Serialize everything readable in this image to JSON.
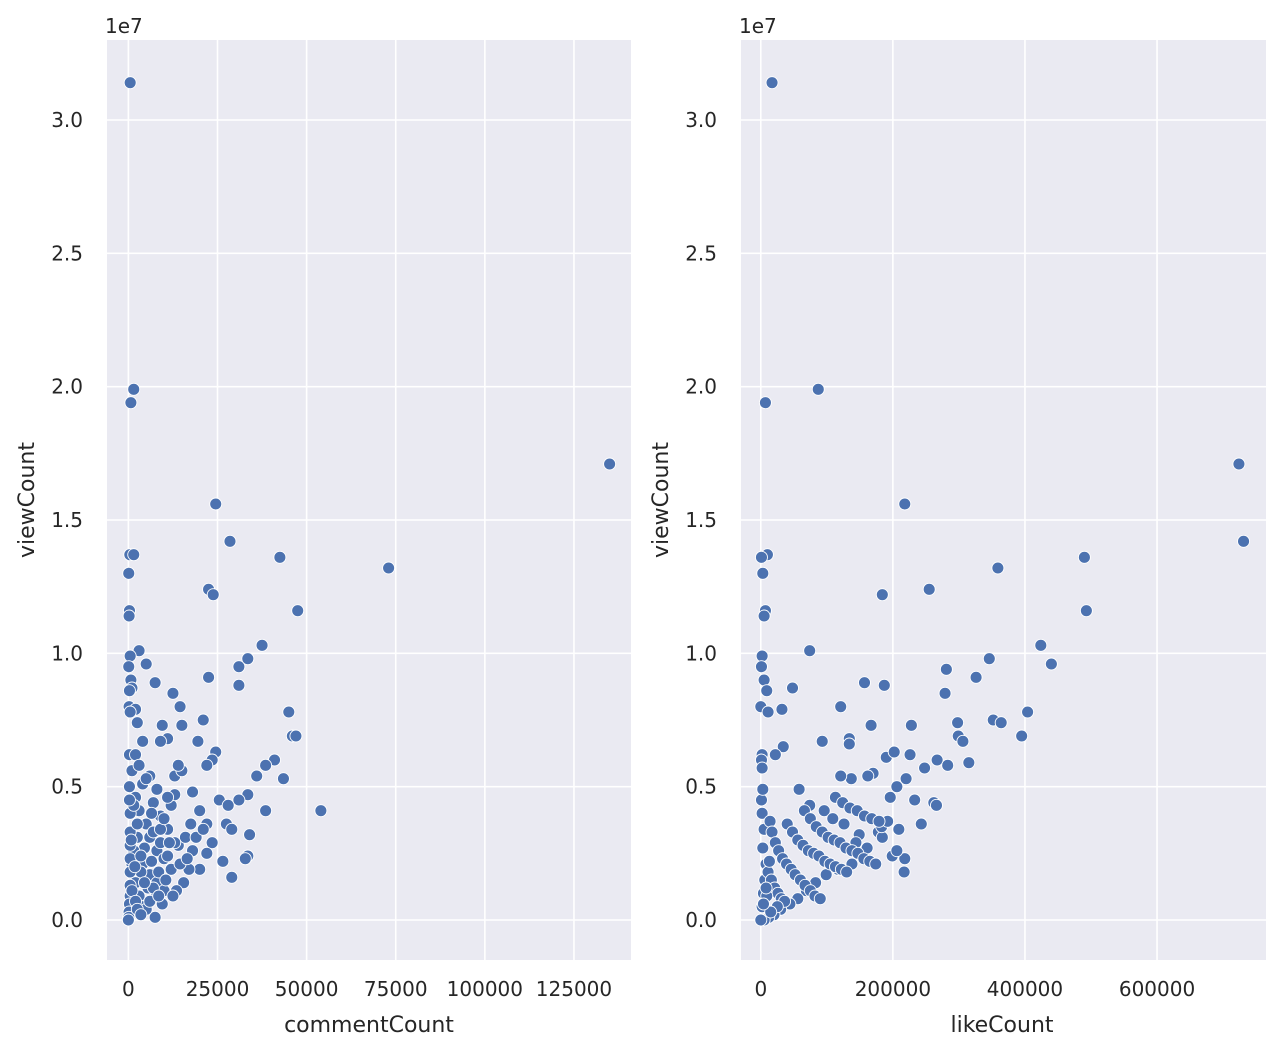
{
  "chart_data": [
    {
      "type": "scatter",
      "xlabel": "commentCount",
      "ylabel": "viewCount",
      "y_offset_label": "1e7",
      "xlim": [
        -6000,
        141000
      ],
      "ylim": [
        -0.15,
        3.3
      ],
      "xticks": [
        0,
        25000,
        50000,
        75000,
        100000,
        125000
      ],
      "xtick_labels": [
        "0",
        "25000",
        "50000",
        "75000",
        "100000",
        "125000"
      ],
      "yticks": [
        0.0,
        0.5,
        1.0,
        1.5,
        2.0,
        2.5,
        3.0
      ],
      "ytick_labels": [
        "0.0",
        "0.5",
        "1.0",
        "1.5",
        "2.0",
        "2.5",
        "3.0"
      ],
      "grid": true,
      "color": "#4c72b0",
      "points": [
        [
          500,
          3.14
        ],
        [
          1500,
          1.99
        ],
        [
          700,
          1.94
        ],
        [
          135000,
          1.71
        ],
        [
          24500,
          1.56
        ],
        [
          28500,
          1.42
        ],
        [
          400,
          1.37
        ],
        [
          1500,
          1.37
        ],
        [
          42500,
          1.36
        ],
        [
          73000,
          1.32
        ],
        [
          100,
          1.3
        ],
        [
          22500,
          1.24
        ],
        [
          23800,
          1.22
        ],
        [
          300,
          1.16
        ],
        [
          47500,
          1.16
        ],
        [
          200,
          1.14
        ],
        [
          37500,
          1.03
        ],
        [
          3000,
          1.01
        ],
        [
          31000,
          0.95
        ],
        [
          33500,
          0.98
        ],
        [
          500,
          0.99
        ],
        [
          100,
          0.95
        ],
        [
          5000,
          0.96
        ],
        [
          22500,
          0.91
        ],
        [
          700,
          0.9
        ],
        [
          7500,
          0.89
        ],
        [
          1000,
          0.87
        ],
        [
          31000,
          0.88
        ],
        [
          12500,
          0.85
        ],
        [
          300,
          0.86
        ],
        [
          200,
          0.8
        ],
        [
          2000,
          0.79
        ],
        [
          500,
          0.78
        ],
        [
          14500,
          0.8
        ],
        [
          45000,
          0.78
        ],
        [
          21000,
          0.75
        ],
        [
          2500,
          0.74
        ],
        [
          9500,
          0.73
        ],
        [
          15000,
          0.73
        ],
        [
          11000,
          0.68
        ],
        [
          9000,
          0.67
        ],
        [
          46000,
          0.69
        ],
        [
          47000,
          0.69
        ],
        [
          19500,
          0.67
        ],
        [
          4000,
          0.67
        ],
        [
          300,
          0.62
        ],
        [
          2000,
          0.62
        ],
        [
          24500,
          0.63
        ],
        [
          41000,
          0.6
        ],
        [
          23500,
          0.6
        ],
        [
          38500,
          0.58
        ],
        [
          36000,
          0.54
        ],
        [
          43500,
          0.53
        ],
        [
          22000,
          0.58
        ],
        [
          25500,
          0.45
        ],
        [
          28000,
          0.43
        ],
        [
          33500,
          0.47
        ],
        [
          31000,
          0.45
        ],
        [
          38500,
          0.41
        ],
        [
          54000,
          0.41
        ],
        [
          27500,
          0.36
        ],
        [
          29000,
          0.34
        ],
        [
          34000,
          0.32
        ],
        [
          26500,
          0.22
        ],
        [
          29000,
          0.16
        ],
        [
          33500,
          0.24
        ],
        [
          32800,
          0.23
        ],
        [
          23500,
          0.29
        ],
        [
          22000,
          0.25
        ],
        [
          20000,
          0.19
        ],
        [
          17000,
          0.19
        ],
        [
          15500,
          0.14
        ],
        [
          13500,
          0.11
        ],
        [
          6000,
          0.31
        ],
        [
          8000,
          0.26
        ],
        [
          10000,
          0.23
        ],
        [
          12000,
          0.19
        ],
        [
          3000,
          0.41
        ],
        [
          5000,
          0.36
        ],
        [
          7000,
          0.33
        ],
        [
          9000,
          0.29
        ],
        [
          11000,
          0.24
        ],
        [
          14000,
          0.28
        ],
        [
          16000,
          0.31
        ],
        [
          18000,
          0.26
        ],
        [
          4000,
          0.21
        ],
        [
          6000,
          0.17
        ],
        [
          8000,
          0.14
        ],
        [
          10000,
          0.11
        ],
        [
          2000,
          0.46
        ],
        [
          4000,
          0.51
        ],
        [
          6000,
          0.54
        ],
        [
          8000,
          0.49
        ],
        [
          12000,
          0.43
        ],
        [
          13000,
          0.54
        ],
        [
          15000,
          0.56
        ],
        [
          18000,
          0.48
        ],
        [
          20000,
          0.41
        ],
        [
          22000,
          0.36
        ],
        [
          1000,
          0.56
        ],
        [
          3000,
          0.58
        ],
        [
          5000,
          0.53
        ],
        [
          7000,
          0.44
        ],
        [
          9000,
          0.39
        ],
        [
          11000,
          0.34
        ],
        [
          13000,
          0.29
        ],
        [
          2500,
          0.31
        ],
        [
          4500,
          0.27
        ],
        [
          6500,
          0.22
        ],
        [
          8500,
          0.18
        ],
        [
          10500,
          0.15
        ],
        [
          12500,
          0.09
        ],
        [
          1500,
          0.26
        ],
        [
          3500,
          0.18
        ],
        [
          5500,
          0.12
        ],
        [
          7500,
          0.08
        ],
        [
          9500,
          0.06
        ],
        [
          1000,
          0.21
        ],
        [
          2000,
          0.14
        ],
        [
          3000,
          0.09
        ],
        [
          4000,
          0.05
        ],
        [
          500,
          0.4
        ],
        [
          500,
          0.33
        ],
        [
          500,
          0.28
        ],
        [
          500,
          0.23
        ],
        [
          500,
          0.18
        ],
        [
          500,
          0.13
        ],
        [
          500,
          0.09
        ],
        [
          300,
          0.06
        ],
        [
          200,
          0.03
        ],
        [
          100,
          0.01
        ],
        [
          0,
          0.0
        ],
        [
          7500,
          0.01
        ],
        [
          1500,
          0.43
        ],
        [
          2500,
          0.36
        ],
        [
          3500,
          0.24
        ],
        [
          5000,
          0.04
        ],
        [
          6000,
          0.07
        ],
        [
          7000,
          0.12
        ],
        [
          8500,
          0.09
        ],
        [
          9000,
          0.34
        ],
        [
          10000,
          0.38
        ],
        [
          11500,
          0.29
        ],
        [
          14500,
          0.21
        ],
        [
          16500,
          0.23
        ],
        [
          17500,
          0.36
        ],
        [
          19000,
          0.31
        ],
        [
          21000,
          0.34
        ],
        [
          14000,
          0.58
        ],
        [
          13000,
          0.47
        ],
        [
          11000,
          0.46
        ],
        [
          300,
          0.5
        ],
        [
          300,
          0.45
        ],
        [
          1000,
          0.11
        ],
        [
          2000,
          0.07
        ],
        [
          2500,
          0.04
        ],
        [
          3500,
          0.02
        ],
        [
          800,
          0.3
        ],
        [
          1800,
          0.2
        ],
        [
          6500,
          0.4
        ],
        [
          4500,
          0.14
        ]
      ]
    },
    {
      "type": "scatter",
      "xlabel": "likeCount",
      "ylabel": "viewCount",
      "y_offset_label": "1e7",
      "xlim": [
        -30000,
        765000
      ],
      "ylim": [
        -0.15,
        3.3
      ],
      "xticks": [
        0,
        200000,
        400000,
        600000
      ],
      "xtick_labels": [
        "0",
        "200000",
        "400000",
        "600000"
      ],
      "yticks": [
        0.0,
        0.5,
        1.0,
        1.5,
        2.0,
        2.5,
        3.0
      ],
      "ytick_labels": [
        "0.0",
        "0.5",
        "1.0",
        "1.5",
        "2.0",
        "2.5",
        "3.0"
      ],
      "grid": true,
      "color": "#4c72b0",
      "points": [
        [
          17000,
          3.14
        ],
        [
          87000,
          1.99
        ],
        [
          7000,
          1.94
        ],
        [
          724000,
          1.71
        ],
        [
          218000,
          1.56
        ],
        [
          731000,
          1.42
        ],
        [
          10000,
          1.37
        ],
        [
          1000,
          1.36
        ],
        [
          490000,
          1.36
        ],
        [
          359000,
          1.32
        ],
        [
          3000,
          1.3
        ],
        [
          255000,
          1.24
        ],
        [
          184000,
          1.22
        ],
        [
          7000,
          1.16
        ],
        [
          493000,
          1.16
        ],
        [
          5000,
          1.14
        ],
        [
          424000,
          1.03
        ],
        [
          74000,
          1.01
        ],
        [
          2000,
          0.99
        ],
        [
          346000,
          0.98
        ],
        [
          1000,
          0.95
        ],
        [
          440000,
          0.96
        ],
        [
          281000,
          0.94
        ],
        [
          326000,
          0.91
        ],
        [
          5000,
          0.9
        ],
        [
          157000,
          0.89
        ],
        [
          187000,
          0.88
        ],
        [
          48000,
          0.87
        ],
        [
          9000,
          0.86
        ],
        [
          279000,
          0.85
        ],
        [
          0,
          0.8
        ],
        [
          11000,
          0.78
        ],
        [
          32000,
          0.79
        ],
        [
          121000,
          0.8
        ],
        [
          404000,
          0.78
        ],
        [
          352000,
          0.75
        ],
        [
          364000,
          0.74
        ],
        [
          228000,
          0.73
        ],
        [
          167000,
          0.73
        ],
        [
          298000,
          0.74
        ],
        [
          395000,
          0.69
        ],
        [
          299000,
          0.69
        ],
        [
          306000,
          0.67
        ],
        [
          93000,
          0.67
        ],
        [
          134000,
          0.68
        ],
        [
          134000,
          0.66
        ],
        [
          34000,
          0.65
        ],
        [
          22000,
          0.62
        ],
        [
          2000,
          0.62
        ],
        [
          1000,
          0.6
        ],
        [
          190000,
          0.61
        ],
        [
          202000,
          0.63
        ],
        [
          226000,
          0.62
        ],
        [
          267000,
          0.6
        ],
        [
          315000,
          0.59
        ],
        [
          283000,
          0.58
        ],
        [
          248000,
          0.57
        ],
        [
          220000,
          0.53
        ],
        [
          170000,
          0.55
        ],
        [
          162000,
          0.54
        ],
        [
          137000,
          0.53
        ],
        [
          121000,
          0.54
        ],
        [
          206000,
          0.5
        ],
        [
          196000,
          0.46
        ],
        [
          233000,
          0.45
        ],
        [
          262000,
          0.44
        ],
        [
          266000,
          0.43
        ],
        [
          243000,
          0.36
        ],
        [
          209000,
          0.34
        ],
        [
          178000,
          0.33
        ],
        [
          149000,
          0.32
        ],
        [
          58000,
          0.49
        ],
        [
          74000,
          0.43
        ],
        [
          96000,
          0.41
        ],
        [
          109000,
          0.38
        ],
        [
          126000,
          0.36
        ],
        [
          144000,
          0.29
        ],
        [
          161000,
          0.27
        ],
        [
          184000,
          0.31
        ],
        [
          199000,
          0.24
        ],
        [
          217000,
          0.18
        ],
        [
          218000,
          0.23
        ],
        [
          206000,
          0.26
        ],
        [
          138000,
          0.21
        ],
        [
          117000,
          0.19
        ],
        [
          99000,
          0.17
        ],
        [
          83000,
          0.14
        ],
        [
          69000,
          0.11
        ],
        [
          56000,
          0.08
        ],
        [
          44000,
          0.06
        ],
        [
          30000,
          0.04
        ],
        [
          20000,
          0.02
        ],
        [
          12000,
          0.01
        ],
        [
          5000,
          0.0
        ],
        [
          0,
          0.0
        ],
        [
          2000,
          0.05
        ],
        [
          4000,
          0.1
        ],
        [
          6000,
          0.15
        ],
        [
          8000,
          0.21
        ],
        [
          3000,
          0.27
        ],
        [
          5000,
          0.34
        ],
        [
          2000,
          0.4
        ],
        [
          1000,
          0.45
        ],
        [
          3000,
          0.49
        ],
        [
          2000,
          0.57
        ],
        [
          14000,
          0.37
        ],
        [
          17000,
          0.33
        ],
        [
          22000,
          0.29
        ],
        [
          27000,
          0.26
        ],
        [
          33000,
          0.23
        ],
        [
          39000,
          0.21
        ],
        [
          46000,
          0.19
        ],
        [
          52000,
          0.17
        ],
        [
          60000,
          0.15
        ],
        [
          67000,
          0.13
        ],
        [
          75000,
          0.11
        ],
        [
          82000,
          0.09
        ],
        [
          90000,
          0.08
        ],
        [
          40000,
          0.36
        ],
        [
          48000,
          0.33
        ],
        [
          56000,
          0.3
        ],
        [
          64000,
          0.28
        ],
        [
          72000,
          0.26
        ],
        [
          80000,
          0.25
        ],
        [
          88000,
          0.24
        ],
        [
          97000,
          0.22
        ],
        [
          105000,
          0.21
        ],
        [
          113000,
          0.2
        ],
        [
          122000,
          0.19
        ],
        [
          130000,
          0.18
        ],
        [
          66000,
          0.41
        ],
        [
          75000,
          0.38
        ],
        [
          84000,
          0.35
        ],
        [
          93000,
          0.33
        ],
        [
          102000,
          0.31
        ],
        [
          111000,
          0.3
        ],
        [
          120000,
          0.29
        ],
        [
          129000,
          0.27
        ],
        [
          138000,
          0.26
        ],
        [
          147000,
          0.25
        ],
        [
          156000,
          0.23
        ],
        [
          165000,
          0.22
        ],
        [
          174000,
          0.21
        ],
        [
          183000,
          0.35
        ],
        [
          192000,
          0.37
        ],
        [
          113000,
          0.46
        ],
        [
          124000,
          0.44
        ],
        [
          135000,
          0.42
        ],
        [
          146000,
          0.41
        ],
        [
          157000,
          0.39
        ],
        [
          168000,
          0.38
        ],
        [
          179000,
          0.37
        ],
        [
          11000,
          0.18
        ],
        [
          16000,
          0.15
        ],
        [
          21000,
          0.12
        ],
        [
          26000,
          0.1
        ],
        [
          31000,
          0.08
        ],
        [
          36000,
          0.07
        ],
        [
          25000,
          0.05
        ],
        [
          15000,
          0.03
        ],
        [
          9000,
          0.09
        ],
        [
          13000,
          0.22
        ],
        [
          8000,
          0.12
        ],
        [
          4000,
          0.06
        ]
      ]
    }
  ]
}
